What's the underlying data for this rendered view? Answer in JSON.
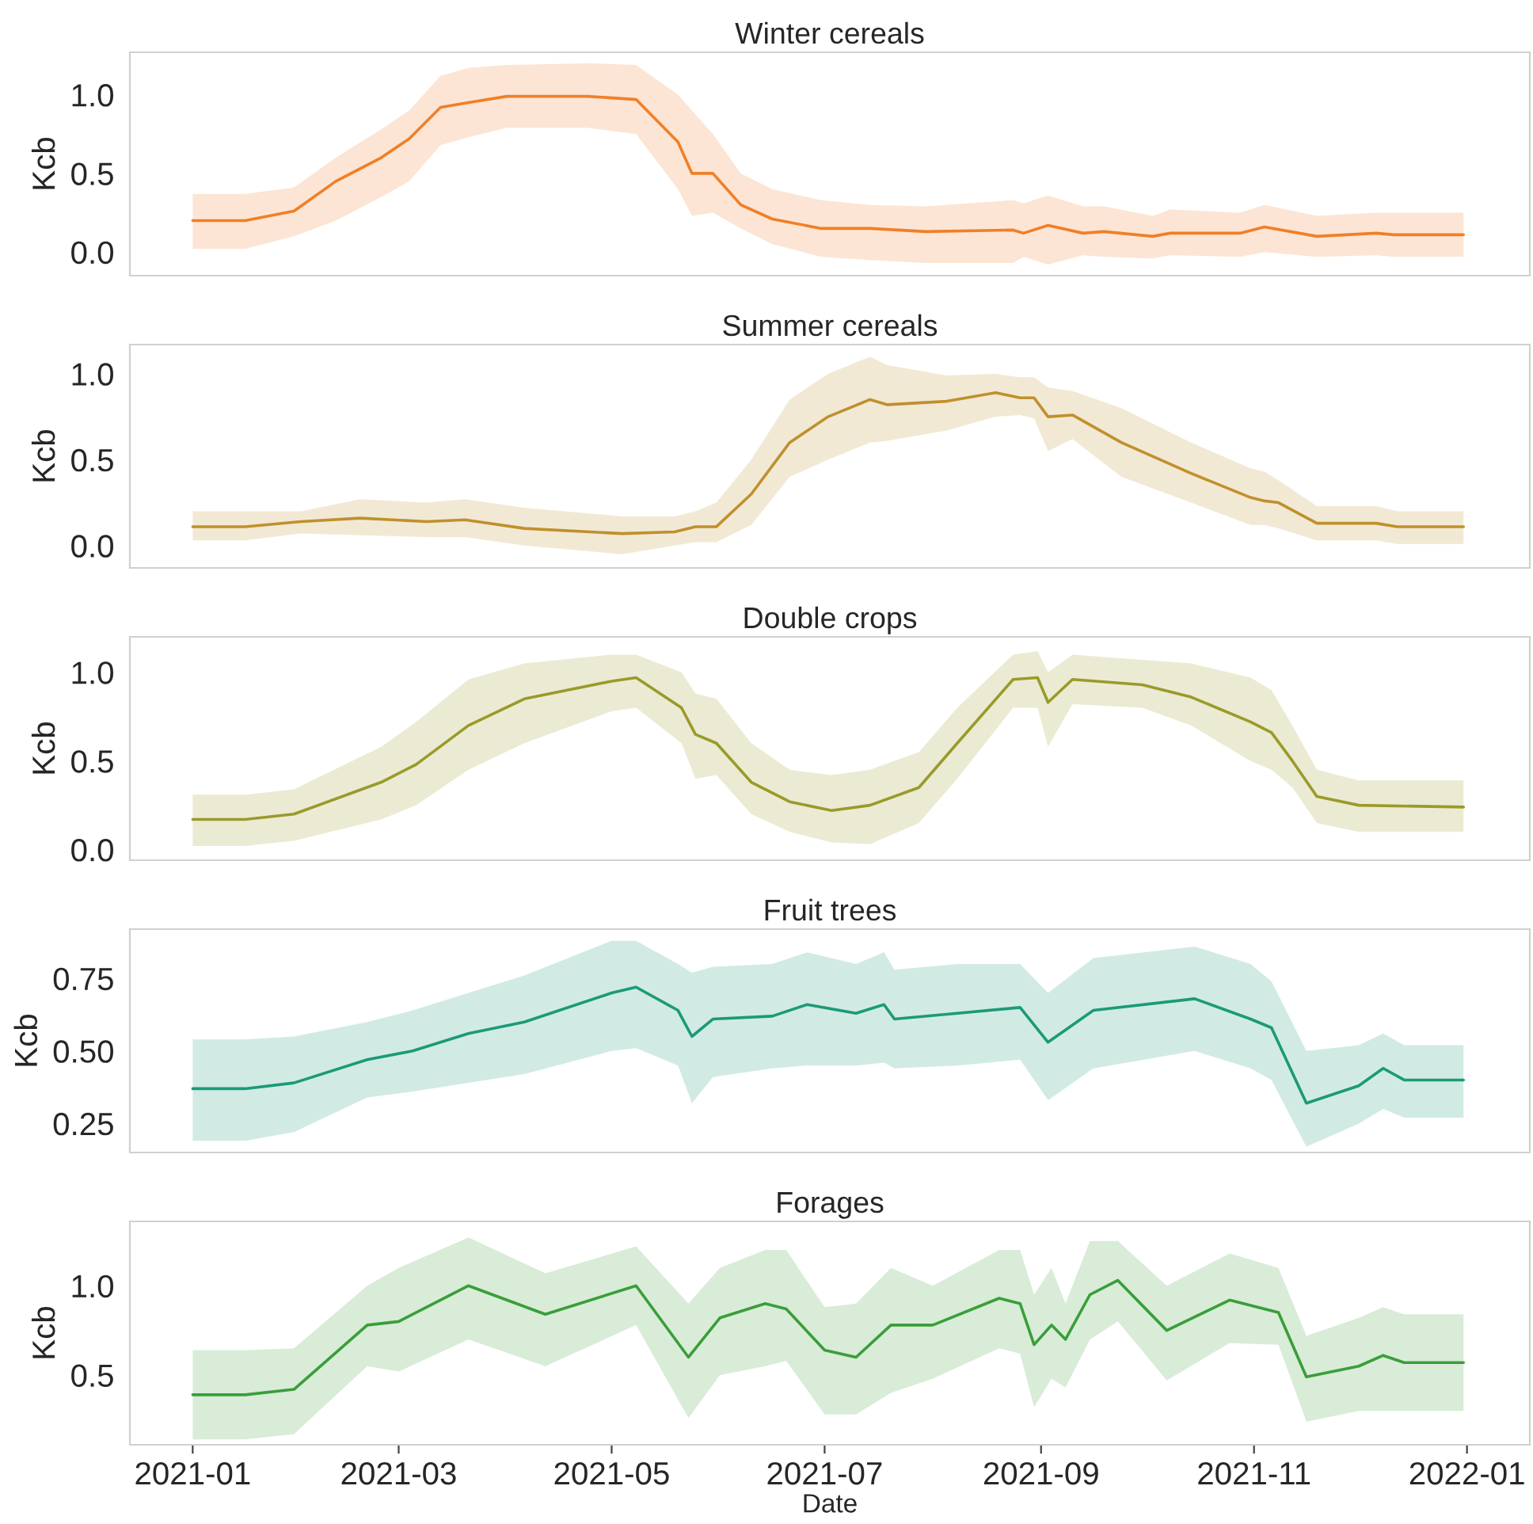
{
  "chart_data": [
    {
      "type": "line",
      "title": "Winter cereals",
      "ylabel": "Kcb",
      "tick_labels": "y",
      "grid": false,
      "xlim": [
        "2020-12-14",
        "2022-01-19"
      ],
      "ylim": [
        -0.15,
        1.27
      ],
      "yticks": [
        {
          "value": 0,
          "label": "0.0"
        },
        {
          "value": 0.5,
          "label": "0.5"
        },
        {
          "value": 1,
          "label": "1.0"
        }
      ],
      "series": [
        {
          "color": "#f07f27",
          "x": [
            "2021-01-01",
            "2021-01-16",
            "2021-01-30",
            "2021-02-11",
            "2021-02-24",
            "2021-03-04",
            "2021-03-13",
            "2021-03-21",
            "2021-04-01",
            "2021-04-24",
            "2021-05-08",
            "2021-05-20",
            "2021-05-24",
            "2021-05-30",
            "2021-06-07",
            "2021-06-16",
            "2021-06-30",
            "2021-07-14",
            "2021-07-30",
            "2021-08-24",
            "2021-08-27",
            "2021-09-03",
            "2021-09-13",
            "2021-09-19",
            "2021-10-03",
            "2021-10-08",
            "2021-10-28",
            "2021-11-04",
            "2021-11-19",
            "2021-12-06",
            "2021-12-11",
            "2021-12-31"
          ],
          "values": [
            0.2,
            0.2,
            0.26,
            0.45,
            0.6,
            0.72,
            0.92,
            0.95,
            0.99,
            0.99,
            0.97,
            0.7,
            0.5,
            0.5,
            0.3,
            0.21,
            0.15,
            0.15,
            0.13,
            0.14,
            0.12,
            0.17,
            0.12,
            0.13,
            0.1,
            0.12,
            0.12,
            0.16,
            0.1,
            0.12,
            0.11,
            0.11
          ],
          "upper": [
            0.37,
            0.37,
            0.41,
            0.6,
            0.78,
            0.9,
            1.12,
            1.17,
            1.19,
            1.2,
            1.19,
            1.0,
            0.9,
            0.75,
            0.5,
            0.4,
            0.33,
            0.3,
            0.29,
            0.33,
            0.31,
            0.36,
            0.29,
            0.29,
            0.23,
            0.27,
            0.25,
            0.3,
            0.23,
            0.25,
            0.25,
            0.25
          ],
          "lower": [
            0.02,
            0.02,
            0.1,
            0.2,
            0.35,
            0.45,
            0.68,
            0.73,
            0.79,
            0.79,
            0.75,
            0.4,
            0.23,
            0.25,
            0.15,
            0.05,
            -0.03,
            -0.05,
            -0.07,
            -0.07,
            -0.03,
            -0.08,
            -0.02,
            -0.03,
            -0.04,
            -0.02,
            -0.03,
            0.0,
            -0.03,
            -0.02,
            -0.03,
            -0.03
          ]
        }
      ]
    },
    {
      "type": "line",
      "title": "Summer cereals",
      "ylabel": "Kcb",
      "tick_labels": "y",
      "grid": false,
      "xlim": [
        "2020-12-14",
        "2022-01-19"
      ],
      "ylim": [
        -0.13,
        1.17
      ],
      "yticks": [
        {
          "value": 0,
          "label": "0.0"
        },
        {
          "value": 0.5,
          "label": "0.5"
        },
        {
          "value": 1,
          "label": "1.0"
        }
      ],
      "series": [
        {
          "color": "#c0902c",
          "x": [
            "2021-01-01",
            "2021-01-16",
            "2021-02-01",
            "2021-02-18",
            "2021-03-09",
            "2021-03-20",
            "2021-04-06",
            "2021-05-04",
            "2021-05-19",
            "2021-05-25",
            "2021-05-31",
            "2021-06-10",
            "2021-06-21",
            "2021-07-02",
            "2021-07-14",
            "2021-07-19",
            "2021-08-05",
            "2021-08-19",
            "2021-08-26",
            "2021-08-30",
            "2021-09-03",
            "2021-09-10",
            "2021-09-24",
            "2021-10-14",
            "2021-10-31",
            "2021-11-04",
            "2021-11-08",
            "2021-11-19",
            "2021-12-06",
            "2021-12-12",
            "2021-12-31"
          ],
          "values": [
            0.11,
            0.11,
            0.14,
            0.16,
            0.14,
            0.15,
            0.1,
            0.07,
            0.08,
            0.11,
            0.11,
            0.3,
            0.6,
            0.75,
            0.85,
            0.82,
            0.84,
            0.89,
            0.86,
            0.86,
            0.75,
            0.76,
            0.6,
            0.42,
            0.28,
            0.26,
            0.25,
            0.13,
            0.13,
            0.11,
            0.11
          ],
          "upper": [
            0.2,
            0.2,
            0.2,
            0.27,
            0.25,
            0.27,
            0.22,
            0.17,
            0.17,
            0.2,
            0.25,
            0.5,
            0.85,
            1.0,
            1.1,
            1.05,
            0.99,
            1.0,
            0.98,
            0.98,
            0.92,
            0.9,
            0.8,
            0.6,
            0.45,
            0.43,
            0.38,
            0.23,
            0.23,
            0.2,
            0.2
          ],
          "lower": [
            0.03,
            0.03,
            0.07,
            0.06,
            0.05,
            0.05,
            0.0,
            -0.05,
            0.0,
            0.02,
            0.02,
            0.12,
            0.4,
            0.5,
            0.6,
            0.61,
            0.67,
            0.75,
            0.76,
            0.74,
            0.55,
            0.62,
            0.4,
            0.25,
            0.12,
            0.12,
            0.1,
            0.03,
            0.03,
            0.01,
            0.01
          ]
        }
      ]
    },
    {
      "type": "line",
      "title": "Double crops",
      "ylabel": "Kcb",
      "tick_labels": "y",
      "grid": false,
      "xlim": [
        "2020-12-14",
        "2022-01-19"
      ],
      "ylim": [
        -0.06,
        1.2
      ],
      "yticks": [
        {
          "value": 0,
          "label": "0.0"
        },
        {
          "value": 0.5,
          "label": "0.5"
        },
        {
          "value": 1,
          "label": "1.0"
        }
      ],
      "series": [
        {
          "color": "#9a9a2a",
          "x": [
            "2021-01-01",
            "2021-01-16",
            "2021-01-30",
            "2021-02-24",
            "2021-03-06",
            "2021-03-21",
            "2021-04-06",
            "2021-05-01",
            "2021-05-08",
            "2021-05-21",
            "2021-05-25",
            "2021-05-31",
            "2021-06-10",
            "2021-06-21",
            "2021-07-03",
            "2021-07-14",
            "2021-07-28",
            "2021-08-08",
            "2021-08-24",
            "2021-08-31",
            "2021-09-03",
            "2021-09-10",
            "2021-09-30",
            "2021-10-14",
            "2021-10-31",
            "2021-11-06",
            "2021-11-12",
            "2021-11-19",
            "2021-12-01",
            "2021-12-31"
          ],
          "values": [
            0.17,
            0.17,
            0.2,
            0.38,
            0.48,
            0.7,
            0.85,
            0.95,
            0.97,
            0.8,
            0.65,
            0.6,
            0.38,
            0.27,
            0.22,
            0.25,
            0.35,
            0.6,
            0.96,
            0.97,
            0.83,
            0.96,
            0.93,
            0.86,
            0.72,
            0.66,
            0.5,
            0.3,
            0.25,
            0.24
          ],
          "upper": [
            0.31,
            0.31,
            0.34,
            0.58,
            0.72,
            0.96,
            1.05,
            1.1,
            1.1,
            1.0,
            0.88,
            0.85,
            0.6,
            0.45,
            0.42,
            0.45,
            0.55,
            0.8,
            1.1,
            1.12,
            1.0,
            1.1,
            1.07,
            1.05,
            0.97,
            0.9,
            0.7,
            0.45,
            0.39,
            0.39
          ],
          "lower": [
            0.02,
            0.02,
            0.05,
            0.17,
            0.25,
            0.45,
            0.6,
            0.78,
            0.8,
            0.6,
            0.4,
            0.42,
            0.2,
            0.1,
            0.04,
            0.03,
            0.15,
            0.4,
            0.8,
            0.8,
            0.58,
            0.82,
            0.8,
            0.7,
            0.5,
            0.45,
            0.35,
            0.15,
            0.1,
            0.1
          ]
        }
      ]
    },
    {
      "type": "line",
      "title": "Fruit trees",
      "ylabel": "Kcb",
      "tick_labels": "y",
      "grid": false,
      "xlim": [
        "2020-12-14",
        "2022-01-19"
      ],
      "ylim": [
        0.15,
        0.92
      ],
      "yticks": [
        0.25,
        {
          "value": 0.5,
          "label": "0.50"
        },
        0.75
      ],
      "series": [
        {
          "color": "#1b9a78",
          "x": [
            "2021-01-01",
            "2021-01-16",
            "2021-01-30",
            "2021-02-20",
            "2021-03-05",
            "2021-03-21",
            "2021-04-06",
            "2021-05-01",
            "2021-05-08",
            "2021-05-20",
            "2021-05-24",
            "2021-05-30",
            "2021-06-16",
            "2021-06-26",
            "2021-07-10",
            "2021-07-18",
            "2021-07-21",
            "2021-08-08",
            "2021-08-26",
            "2021-09-03",
            "2021-09-16",
            "2021-10-15",
            "2021-10-31",
            "2021-11-06",
            "2021-11-16",
            "2021-12-01",
            "2021-12-08",
            "2021-12-14",
            "2021-12-31"
          ],
          "values": [
            0.37,
            0.37,
            0.39,
            0.47,
            0.5,
            0.56,
            0.6,
            0.7,
            0.72,
            0.64,
            0.55,
            0.61,
            0.62,
            0.66,
            0.63,
            0.66,
            0.61,
            0.63,
            0.65,
            0.53,
            0.64,
            0.68,
            0.61,
            0.58,
            0.32,
            0.38,
            0.44,
            0.4,
            0.4
          ],
          "upper": [
            0.54,
            0.54,
            0.55,
            0.6,
            0.64,
            0.7,
            0.76,
            0.88,
            0.88,
            0.8,
            0.77,
            0.79,
            0.8,
            0.84,
            0.8,
            0.84,
            0.78,
            0.8,
            0.8,
            0.7,
            0.82,
            0.86,
            0.8,
            0.74,
            0.5,
            0.52,
            0.56,
            0.52,
            0.52
          ],
          "lower": [
            0.19,
            0.19,
            0.22,
            0.34,
            0.36,
            0.39,
            0.42,
            0.5,
            0.51,
            0.45,
            0.32,
            0.41,
            0.44,
            0.45,
            0.45,
            0.46,
            0.44,
            0.45,
            0.47,
            0.33,
            0.44,
            0.5,
            0.44,
            0.4,
            0.17,
            0.25,
            0.3,
            0.27,
            0.27
          ]
        }
      ]
    },
    {
      "type": "line",
      "title": "Forages",
      "ylabel": "Kcb",
      "xlabel": "Date",
      "grid": false,
      "xlim": [
        "2020-12-14",
        "2022-01-19"
      ],
      "ylim": [
        0.11,
        1.36
      ],
      "yticks": [
        {
          "value": 0.5,
          "label": "0.5"
        },
        {
          "value": 1,
          "label": "1.0"
        }
      ],
      "xticks": [
        {
          "value": "2021-01-01",
          "label": "2021-01"
        },
        {
          "value": "2021-03-01",
          "label": "2021-03"
        },
        {
          "value": "2021-05-01",
          "label": "2021-05"
        },
        {
          "value": "2021-07-01",
          "label": "2021-07"
        },
        {
          "value": "2021-09-01",
          "label": "2021-09"
        },
        {
          "value": "2021-11-01",
          "label": "2021-11"
        },
        {
          "value": "2022-01-01",
          "label": "2022-01"
        }
      ],
      "series": [
        {
          "color": "#3a9e3a",
          "x": [
            "2021-01-01",
            "2021-01-16",
            "2021-01-30",
            "2021-02-20",
            "2021-03-01",
            "2021-03-21",
            "2021-04-12",
            "2021-05-08",
            "2021-05-23",
            "2021-06-01",
            "2021-06-14",
            "2021-06-20",
            "2021-07-01",
            "2021-07-10",
            "2021-07-20",
            "2021-08-01",
            "2021-08-20",
            "2021-08-26",
            "2021-08-30",
            "2021-09-04",
            "2021-09-08",
            "2021-09-15",
            "2021-09-23",
            "2021-10-07",
            "2021-10-25",
            "2021-11-08",
            "2021-11-16",
            "2021-12-01",
            "2021-12-08",
            "2021-12-14",
            "2021-12-31"
          ],
          "values": [
            0.39,
            0.39,
            0.42,
            0.78,
            0.8,
            1.0,
            0.84,
            1.0,
            0.6,
            0.82,
            0.9,
            0.87,
            0.64,
            0.6,
            0.78,
            0.78,
            0.93,
            0.9,
            0.67,
            0.78,
            0.7,
            0.95,
            1.03,
            0.75,
            0.92,
            0.85,
            0.49,
            0.55,
            0.61,
            0.57,
            0.57
          ],
          "upper": [
            0.64,
            0.64,
            0.65,
            1.0,
            1.1,
            1.27,
            1.07,
            1.22,
            0.9,
            1.1,
            1.2,
            1.2,
            0.88,
            0.9,
            1.1,
            1.0,
            1.2,
            1.2,
            0.95,
            1.1,
            0.9,
            1.25,
            1.25,
            1.0,
            1.18,
            1.1,
            0.72,
            0.82,
            0.88,
            0.84,
            0.84
          ],
          "lower": [
            0.14,
            0.14,
            0.17,
            0.55,
            0.52,
            0.7,
            0.55,
            0.78,
            0.26,
            0.5,
            0.55,
            0.58,
            0.28,
            0.28,
            0.4,
            0.48,
            0.65,
            0.62,
            0.32,
            0.48,
            0.43,
            0.7,
            0.8,
            0.47,
            0.68,
            0.67,
            0.24,
            0.3,
            0.3,
            0.3,
            0.3
          ]
        }
      ]
    }
  ]
}
